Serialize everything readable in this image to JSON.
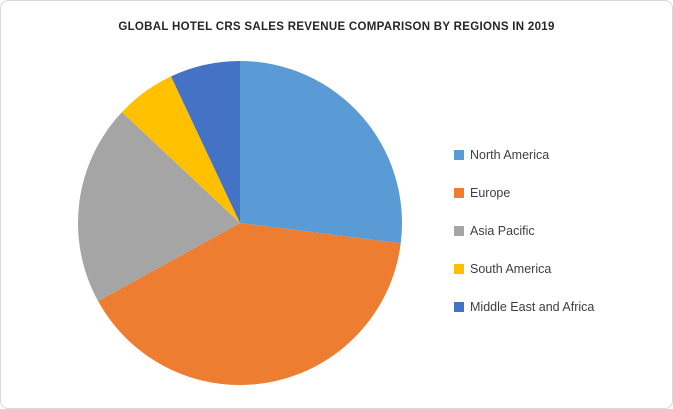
{
  "chart_data": {
    "type": "pie",
    "title": "GLOBAL HOTEL CRS SALES REVENUE COMPARISON BY REGIONS IN 2019",
    "categories": [
      "North America",
      "Europe",
      "Asia Pacific",
      "South America",
      "Middle East and Africa"
    ],
    "values": [
      27,
      40,
      20,
      6,
      7
    ],
    "unit": "percent",
    "colors": [
      "#5B9BD5",
      "#ED7D31",
      "#A5A5A5",
      "#FFC000",
      "#4472C4"
    ],
    "legend_position": "right",
    "start_angle_deg": 0,
    "direction": "clockwise",
    "data_labels": false
  }
}
